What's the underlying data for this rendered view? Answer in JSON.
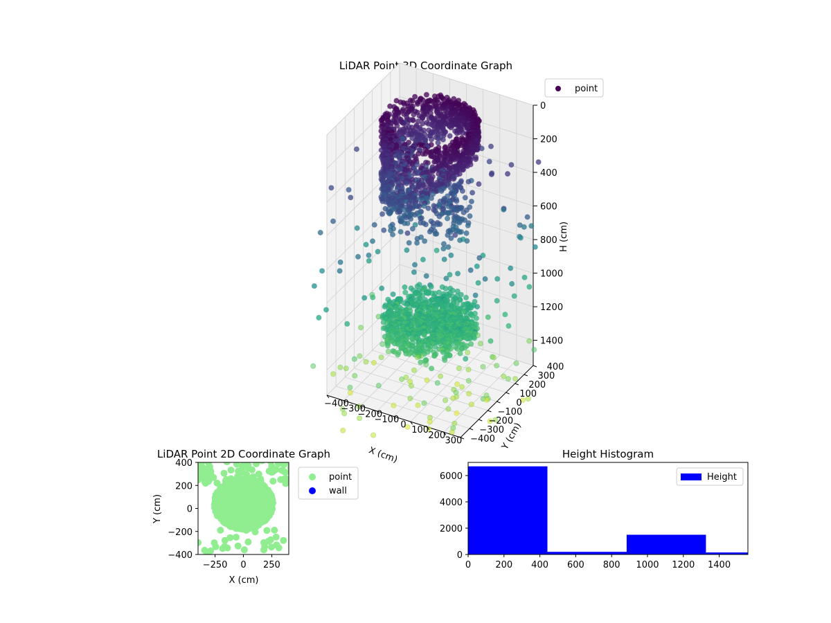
{
  "chart_data": [
    {
      "id": "scatter3d",
      "type": "scatter",
      "title": "LiDAR Point 3D Coordinate Graph",
      "xlabel": "X (cm)",
      "ylabel": "Y (cm)",
      "zlabel": "H (cm)",
      "xlim": [
        -400,
        400
      ],
      "ylim": [
        -400,
        400
      ],
      "zlim": [
        0,
        1550
      ],
      "z_inverted": true,
      "x_ticks": [
        -400,
        -300,
        -200,
        -100,
        0,
        100,
        200,
        300
      ],
      "x_tick_labels": [
        "−400",
        "−300",
        "−200",
        "−100",
        "0",
        "100",
        "200",
        "300"
      ],
      "y_ticks": [
        -400,
        -300,
        -200,
        -100,
        0,
        100,
        200,
        300,
        400
      ],
      "y_tick_labels": [
        "−400",
        "−300",
        "−200",
        "−100",
        "0",
        "100",
        "200",
        "300",
        "400"
      ],
      "z_ticks": [
        0,
        200,
        400,
        600,
        800,
        1000,
        1200,
        1400
      ],
      "z_tick_labels": [
        "0",
        "200",
        "400",
        "600",
        "800",
        "1000",
        "1200",
        "1400"
      ],
      "grid": true,
      "colormap": "viridis",
      "legend": {
        "placement": "top-right",
        "entries": [
          {
            "name": "point",
            "color": "#440154"
          }
        ]
      },
      "clusters": [
        {
          "shape": "ring",
          "radius": 240,
          "z_from": 0,
          "z_to": 520
        },
        {
          "shape": "disc",
          "radius": 250,
          "z_from": 1120,
          "z_to": 1300
        }
      ]
    },
    {
      "id": "scatter2d",
      "type": "scatter",
      "title": "LiDAR Point 2D Coordinate Graph",
      "xlabel": "X (cm)",
      "ylabel": "Y (cm)",
      "xlim": [
        -400,
        400
      ],
      "ylim": [
        -400,
        400
      ],
      "x_tick_labels": [
        "−250",
        "0",
        "250"
      ],
      "y_tick_labels": [
        "−400",
        "−200",
        "0",
        "200",
        "400"
      ],
      "legend": {
        "placement": "right",
        "entries": [
          {
            "name": "point",
            "color": "#90ee90"
          },
          {
            "name": "wall",
            "color": "#0000ff"
          }
        ]
      }
    },
    {
      "id": "histogram",
      "type": "bar",
      "title": "Height Histogram",
      "bin_edges": [
        0,
        442,
        884,
        1326,
        1560
      ],
      "values": [
        6700,
        200,
        1500,
        150
      ],
      "color": "#0000ff",
      "xlim": [
        0,
        1560
      ],
      "ylim": [
        0,
        7000
      ],
      "x_ticks": [
        0,
        200,
        400,
        600,
        800,
        1000,
        1200,
        1400
      ],
      "x_tick_labels": [
        "0",
        "200",
        "400",
        "600",
        "800",
        "1000",
        "1200",
        "1400"
      ],
      "y_ticks": [
        0,
        2000,
        4000,
        6000
      ],
      "y_tick_labels": [
        "0",
        "2000",
        "4000",
        "6000"
      ],
      "legend": {
        "placement": "top-right",
        "entries": [
          {
            "name": "Height",
            "color": "#0000ff"
          }
        ]
      }
    }
  ]
}
